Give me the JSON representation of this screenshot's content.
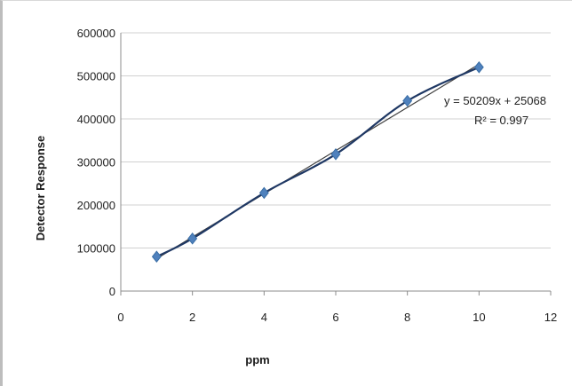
{
  "chart_data": {
    "type": "scatter",
    "title": "",
    "xlabel": "ppm",
    "ylabel": "Detector Response",
    "xlim": [
      0,
      12
    ],
    "ylim": [
      0,
      600000
    ],
    "x_ticks": [
      0,
      2,
      4,
      6,
      8,
      10,
      12
    ],
    "y_ticks": [
      0,
      100000,
      200000,
      300000,
      400000,
      500000,
      600000
    ],
    "x_tick_labels": [
      "0",
      "2",
      "4",
      "6",
      "8",
      "10",
      "12"
    ],
    "y_tick_labels": [
      "0",
      "100000",
      "200000",
      "300000",
      "400000",
      "500000",
      "600000"
    ],
    "grid": "horizontal",
    "legend": "none",
    "series": [
      {
        "x": [
          1,
          2,
          4,
          6,
          8,
          10
        ],
        "y": [
          80000,
          122000,
          228000,
          318000,
          442000,
          520000
        ],
        "marker": "diamond",
        "line": "smooth",
        "color": "#4f81bd"
      }
    ],
    "trendline": {
      "type": "linear",
      "slope": 50209,
      "intercept": 25068,
      "color": "#404040"
    },
    "annotations": {
      "equation": "y = 50209x + 25068",
      "r_squared": "R² = 0.997"
    }
  },
  "colors": {
    "series": "#4f81bd",
    "series_line": "#1f3864",
    "trendline": "#404040",
    "grid": "#d0d0d0",
    "axis": "#8c8c8c"
  }
}
